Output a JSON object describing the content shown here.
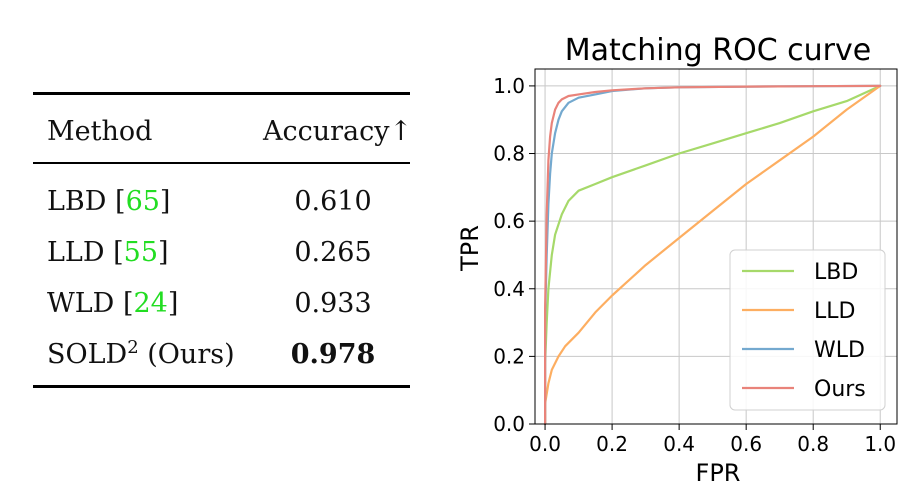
{
  "table": {
    "headers": [
      "Method",
      "Accuracy↑"
    ],
    "rows": [
      {
        "method": "LBD",
        "cite_open": "[",
        "cite": "65",
        "cite_close": "]",
        "accuracy": "0.610"
      },
      {
        "method": "LLD",
        "cite_open": "[",
        "cite": "55",
        "cite_close": "]",
        "accuracy": "0.265"
      },
      {
        "method": "WLD",
        "cite_open": "[",
        "cite": "24",
        "cite_close": "]",
        "accuracy": "0.933"
      },
      {
        "method": "SOLD",
        "sup": "2",
        "suffix": " (Ours)",
        "accuracy": "0.978"
      }
    ],
    "cite_color": "#22dd22"
  },
  "chart_data": {
    "type": "line",
    "title": "Matching ROC curve",
    "xlabel": "FPR",
    "ylabel": "TPR",
    "xlim": [
      -0.03,
      1.05
    ],
    "ylim": [
      0.0,
      1.05
    ],
    "xticks": [
      0.0,
      0.2,
      0.4,
      0.6,
      0.8,
      1.0
    ],
    "yticks": [
      0.0,
      0.2,
      0.4,
      0.6,
      0.8,
      1.0
    ],
    "xtick_labels": [
      "0.0",
      "0.2",
      "0.4",
      "0.6",
      "0.8",
      "1.0"
    ],
    "ytick_labels": [
      "0.0",
      "0.2",
      "0.4",
      "0.6",
      "0.8",
      "1.0"
    ],
    "grid": true,
    "legend_position": "lower-right",
    "series": [
      {
        "name": "LBD",
        "color": "#a6d96a",
        "x": [
          0.0,
          0.0,
          0.005,
          0.01,
          0.02,
          0.03,
          0.05,
          0.07,
          0.1,
          0.15,
          0.2,
          0.3,
          0.4,
          0.5,
          0.6,
          0.7,
          0.8,
          0.9,
          1.0
        ],
        "y": [
          0.0,
          0.18,
          0.3,
          0.4,
          0.5,
          0.56,
          0.62,
          0.66,
          0.69,
          0.71,
          0.73,
          0.765,
          0.8,
          0.83,
          0.86,
          0.89,
          0.925,
          0.955,
          1.0
        ]
      },
      {
        "name": "LLD",
        "color": "#fdae61",
        "x": [
          0.0,
          0.0,
          0.01,
          0.02,
          0.04,
          0.06,
          0.1,
          0.15,
          0.2,
          0.3,
          0.4,
          0.5,
          0.6,
          0.7,
          0.8,
          0.9,
          1.0
        ],
        "y": [
          0.0,
          0.06,
          0.12,
          0.16,
          0.2,
          0.23,
          0.27,
          0.33,
          0.38,
          0.47,
          0.55,
          0.63,
          0.71,
          0.78,
          0.85,
          0.93,
          1.0
        ]
      },
      {
        "name": "WLD",
        "color": "#74a9cf",
        "x": [
          0.0,
          0.0,
          0.005,
          0.01,
          0.015,
          0.02,
          0.03,
          0.04,
          0.05,
          0.07,
          0.1,
          0.15,
          0.2,
          0.3,
          0.4,
          0.6,
          0.8,
          1.0
        ],
        "y": [
          0.0,
          0.31,
          0.5,
          0.65,
          0.74,
          0.8,
          0.86,
          0.9,
          0.925,
          0.95,
          0.965,
          0.975,
          0.985,
          0.993,
          0.996,
          0.998,
          0.999,
          1.0
        ]
      },
      {
        "name": "Ours",
        "color": "#e9837a",
        "x": [
          0.0,
          0.0,
          0.005,
          0.01,
          0.015,
          0.02,
          0.03,
          0.04,
          0.05,
          0.07,
          0.1,
          0.15,
          0.2,
          0.3,
          0.4,
          0.6,
          0.8,
          1.0
        ],
        "y": [
          0.0,
          0.34,
          0.62,
          0.78,
          0.85,
          0.89,
          0.93,
          0.95,
          0.96,
          0.97,
          0.975,
          0.982,
          0.987,
          0.993,
          0.996,
          0.998,
          0.999,
          1.0
        ]
      }
    ]
  }
}
